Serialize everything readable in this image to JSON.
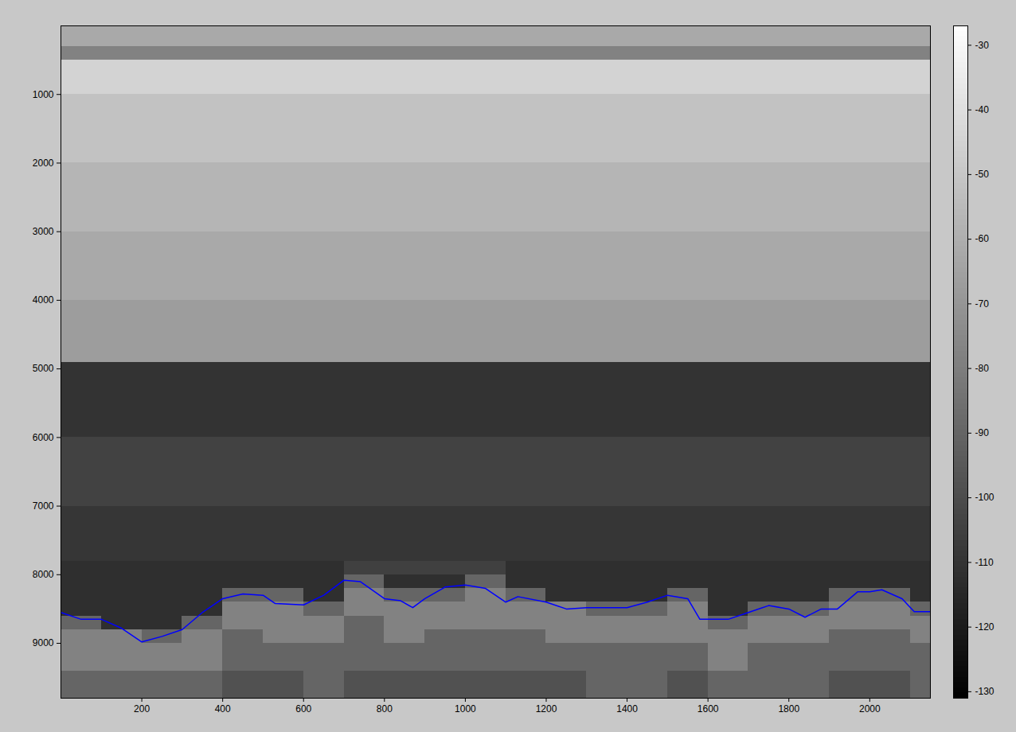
{
  "chart_data": {
    "type": "heatmap",
    "xlim": [
      0,
      2150
    ],
    "xticks": [
      200,
      400,
      600,
      800,
      1000,
      1200,
      1400,
      1600,
      1800,
      2000
    ],
    "ylim": [
      0,
      9800
    ],
    "yticks": [
      1000,
      2000,
      3000,
      4000,
      5000,
      6000,
      7000,
      8000,
      9000
    ],
    "heatmap": {
      "x_edges": [
        0,
        100,
        200,
        300,
        400,
        500,
        600,
        700,
        800,
        900,
        1000,
        1100,
        1200,
        1300,
        1400,
        1500,
        1600,
        1700,
        1800,
        1900,
        2000,
        2100,
        2150
      ],
      "y_edges": [
        0,
        300,
        500,
        1000,
        2000,
        3000,
        4000,
        4900,
        6000,
        7000,
        7800,
        8000,
        8200,
        8400,
        8600,
        8800,
        9000,
        9400,
        9800
      ],
      "cells": [
        [
          -62,
          -62,
          -62,
          -62,
          -62,
          -62,
          -62,
          -62,
          -62,
          -62,
          -62,
          -62,
          -62,
          -62,
          -62,
          -62,
          -62,
          -62,
          -62,
          -62,
          -62,
          -62
        ],
        [
          -78,
          -78,
          -78,
          -78,
          -78,
          -78,
          -78,
          -78,
          -78,
          -78,
          -78,
          -78,
          -78,
          -78,
          -78,
          -78,
          -78,
          -78,
          -78,
          -78,
          -78,
          -78
        ],
        [
          -45,
          -45,
          -45,
          -45,
          -45,
          -45,
          -45,
          -45,
          -45,
          -45,
          -45,
          -45,
          -45,
          -45,
          -45,
          -45,
          -45,
          -45,
          -45,
          -45,
          -45,
          -45
        ],
        [
          -52,
          -52,
          -52,
          -52,
          -52,
          -52,
          -52,
          -52,
          -52,
          -52,
          -52,
          -52,
          -52,
          -52,
          -52,
          -52,
          -52,
          -52,
          -52,
          -52,
          -52,
          -52
        ],
        [
          -57,
          -57,
          -57,
          -57,
          -57,
          -57,
          -57,
          -57,
          -57,
          -57,
          -57,
          -57,
          -57,
          -57,
          -57,
          -57,
          -57,
          -57,
          -57,
          -57,
          -57,
          -57
        ],
        [
          -62,
          -62,
          -62,
          -62,
          -62,
          -62,
          -62,
          -62,
          -62,
          -62,
          -62,
          -62,
          -62,
          -62,
          -62,
          -62,
          -62,
          -62,
          -62,
          -62,
          -62,
          -62
        ],
        [
          -67,
          -67,
          -67,
          -67,
          -67,
          -67,
          -67,
          -67,
          -67,
          -67,
          -67,
          -67,
          -67,
          -67,
          -67,
          -67,
          -67,
          -67,
          -67,
          -67,
          -67,
          -67
        ],
        [
          -110,
          -110,
          -110,
          -110,
          -110,
          -110,
          -110,
          -110,
          -110,
          -110,
          -110,
          -110,
          -110,
          -110,
          -110,
          -110,
          -110,
          -110,
          -110,
          -110,
          -110,
          -110
        ],
        [
          -104,
          -104,
          -104,
          -104,
          -104,
          -104,
          -104,
          -104,
          -104,
          -104,
          -104,
          -104,
          -104,
          -104,
          -104,
          -104,
          -104,
          -104,
          -104,
          -104,
          -104,
          -104
        ],
        [
          -109,
          -109,
          -109,
          -109,
          -109,
          -109,
          -109,
          -109,
          -109,
          -109,
          -109,
          -109,
          -109,
          -109,
          -109,
          -109,
          -109,
          -109,
          -109,
          -109,
          -109,
          -109
        ],
        [
          -112,
          -112,
          -112,
          -112,
          -112,
          -112,
          -112,
          -105,
          -105,
          -105,
          -105,
          -112,
          -112,
          -112,
          -112,
          -112,
          -112,
          -112,
          -112,
          -112,
          -112,
          -112
        ],
        [
          -112,
          -112,
          -112,
          -112,
          -112,
          -112,
          -112,
          -90,
          -112,
          -112,
          -90,
          -112,
          -112,
          -112,
          -112,
          -112,
          -112,
          -112,
          -112,
          -112,
          -112,
          -112
        ],
        [
          -112,
          -112,
          -112,
          -112,
          -90,
          -90,
          -112,
          -78,
          -90,
          -90,
          -78,
          -90,
          -112,
          -112,
          -112,
          -90,
          -112,
          -112,
          -112,
          -90,
          -90,
          -112
        ],
        [
          -112,
          -112,
          -112,
          -112,
          -78,
          -78,
          -90,
          -78,
          -78,
          -78,
          -78,
          -78,
          -78,
          -90,
          -90,
          -78,
          -112,
          -90,
          -90,
          -78,
          -78,
          -90
        ],
        [
          -90,
          -112,
          -112,
          -90,
          -78,
          -78,
          -78,
          -90,
          -78,
          -78,
          -78,
          -78,
          -78,
          -78,
          -78,
          -78,
          -90,
          -78,
          -78,
          -78,
          -78,
          -78
        ],
        [
          -78,
          -78,
          -90,
          -78,
          -90,
          -78,
          -78,
          -90,
          -78,
          -90,
          -90,
          -90,
          -78,
          -78,
          -78,
          -78,
          -78,
          -78,
          -78,
          -90,
          -90,
          -78
        ],
        [
          -78,
          -78,
          -78,
          -78,
          -90,
          -90,
          -90,
          -90,
          -90,
          -90,
          -90,
          -90,
          -90,
          -90,
          -90,
          -90,
          -78,
          -90,
          -90,
          -90,
          -90,
          -90
        ],
        [
          -90,
          -90,
          -90,
          -90,
          -98,
          -98,
          -90,
          -98,
          -98,
          -98,
          -98,
          -98,
          -98,
          -90,
          -90,
          -98,
          -90,
          -90,
          -90,
          -98,
          -98,
          -90
        ]
      ],
      "color_lim": [
        -131,
        -27
      ],
      "color_ticks": [
        -30,
        -40,
        -50,
        -60,
        -70,
        -80,
        -90,
        -100,
        -110,
        -120,
        -130
      ]
    },
    "line": {
      "color": "#0000ff",
      "x": [
        0,
        50,
        100,
        150,
        200,
        250,
        300,
        350,
        400,
        450,
        500,
        530,
        600,
        650,
        700,
        740,
        800,
        840,
        870,
        900,
        950,
        1000,
        1050,
        1100,
        1130,
        1200,
        1250,
        1300,
        1400,
        1450,
        1500,
        1550,
        1580,
        1650,
        1700,
        1750,
        1800,
        1840,
        1880,
        1920,
        1970,
        2000,
        2030,
        2080,
        2110,
        2150
      ],
      "y": [
        8550,
        8650,
        8650,
        8780,
        8980,
        8900,
        8800,
        8550,
        8350,
        8280,
        8300,
        8420,
        8440,
        8300,
        8080,
        8100,
        8350,
        8380,
        8480,
        8350,
        8180,
        8150,
        8200,
        8400,
        8320,
        8400,
        8500,
        8480,
        8480,
        8400,
        8300,
        8350,
        8650,
        8650,
        8550,
        8450,
        8500,
        8620,
        8500,
        8500,
        8250,
        8250,
        8220,
        8350,
        8540,
        8540
      ]
    }
  }
}
